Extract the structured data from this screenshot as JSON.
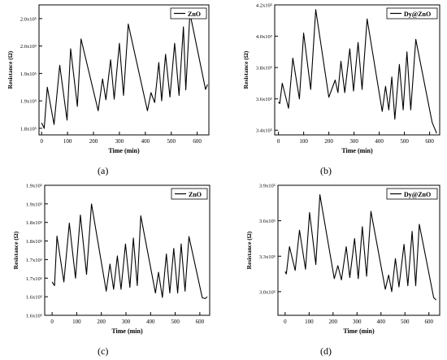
{
  "chart_data": [
    {
      "type": "line",
      "panel_label": "(a)",
      "legend": "ZnO",
      "legend_position": "top-right",
      "xlabel": "Time (min)",
      "ylabel": "Resistance (Ω)",
      "xlim": [
        -10,
        645
      ],
      "ylim": [
        1.788,
        2.025
      ],
      "x_ticks": [
        "0",
        "100",
        "200",
        "300",
        "400",
        "500",
        "600"
      ],
      "x_tick_values": [
        0,
        100,
        200,
        300,
        400,
        500,
        600
      ],
      "y_ticks": [
        "1.8x10⁵",
        "1.9x10⁵",
        "1.9x10⁵",
        "2.0x10⁵",
        "2.0x10⁵"
      ],
      "y_tick_values": [
        1.8,
        1.85,
        1.9,
        1.95,
        2.0
      ],
      "series": [
        {
          "values": [
            [
              0,
              1.81
            ],
            [
              10,
              1.8
            ],
            [
              22,
              1.875
            ],
            [
              48,
              1.807
            ],
            [
              70,
              1.915
            ],
            [
              98,
              1.815
            ],
            [
              112,
              1.945
            ],
            [
              138,
              1.84
            ],
            [
              152,
              1.963
            ],
            [
              218,
              1.832
            ],
            [
              235,
              1.89
            ],
            [
              248,
              1.852
            ],
            [
              266,
              1.925
            ],
            [
              280,
              1.853
            ],
            [
              300,
              1.955
            ],
            [
              316,
              1.86
            ],
            [
              334,
              1.99
            ],
            [
              408,
              1.832
            ],
            [
              422,
              1.865
            ],
            [
              436,
              1.847
            ],
            [
              452,
              1.92
            ],
            [
              463,
              1.85
            ],
            [
              478,
              1.935
            ],
            [
              495,
              1.857
            ],
            [
              513,
              1.955
            ],
            [
              530,
              1.86
            ],
            [
              547,
              1.985
            ],
            [
              556,
              1.87
            ],
            [
              572,
              2.01
            ],
            [
              632,
              1.871
            ],
            [
              640,
              1.88
            ]
          ]
        }
      ]
    },
    {
      "type": "line",
      "panel_label": "(b)",
      "legend": "Dy@ZnO",
      "legend_position": "top-right",
      "xlabel": "Time (min)",
      "ylabel": "Resistance (Ω)",
      "xlim": [
        -15,
        640
      ],
      "ylim": [
        3.37,
        4.2
      ],
      "x_ticks": [
        "0",
        "100",
        "200",
        "300",
        "400",
        "500",
        "600"
      ],
      "x_tick_values": [
        0,
        100,
        200,
        300,
        400,
        500,
        600
      ],
      "y_ticks": [
        "3.4x10⁵",
        "3.6x10⁵",
        "3.8x10⁵",
        "4.0x10⁵",
        "4.2x10⁵"
      ],
      "y_tick_values": [
        3.4,
        3.6,
        3.8,
        4.0,
        4.2
      ],
      "series": [
        {
          "values": [
            [
              0,
              3.58
            ],
            [
              5,
              3.57
            ],
            [
              15,
              3.7
            ],
            [
              40,
              3.54
            ],
            [
              57,
              3.86
            ],
            [
              83,
              3.6
            ],
            [
              100,
              4.02
            ],
            [
              128,
              3.66
            ],
            [
              148,
              4.17
            ],
            [
              200,
              3.61
            ],
            [
              225,
              3.72
            ],
            [
              236,
              3.64
            ],
            [
              248,
              3.84
            ],
            [
              263,
              3.64
            ],
            [
              283,
              3.92
            ],
            [
              298,
              3.65
            ],
            [
              316,
              3.96
            ],
            [
              332,
              3.66
            ],
            [
              352,
              4.11
            ],
            [
              412,
              3.52
            ],
            [
              425,
              3.68
            ],
            [
              438,
              3.53
            ],
            [
              450,
              3.74
            ],
            [
              462,
              3.47
            ],
            [
              480,
              3.82
            ],
            [
              495,
              3.53
            ],
            [
              510,
              3.9
            ],
            [
              525,
              3.53
            ],
            [
              545,
              3.98
            ],
            [
              610,
              3.45
            ],
            [
              628,
              3.38
            ]
          ]
        }
      ]
    },
    {
      "type": "line",
      "panel_label": "(c)",
      "legend": "ZnO",
      "legend_position": "top-right",
      "xlabel": "Time (min)",
      "ylabel": "Resistance (Ω)",
      "xlim": [
        -30,
        640
      ],
      "ylim": [
        1.6,
        1.95
      ],
      "x_ticks": [
        "0",
        "100",
        "200",
        "300",
        "400",
        "500",
        "600"
      ],
      "x_tick_values": [
        0,
        100,
        200,
        300,
        400,
        500,
        600
      ],
      "y_ticks": [
        "1.6x10⁵",
        "1.6x10⁵",
        "1.7x10⁵",
        "1.7x10⁵",
        "1.8x10⁵",
        "1.8x10⁵",
        "1.9x10⁵",
        "1.9x10⁵"
      ],
      "y_tick_values": [
        1.6,
        1.65,
        1.7,
        1.75,
        1.8,
        1.85,
        1.9,
        1.95
      ],
      "series": [
        {
          "values": [
            [
              0,
              1.69
            ],
            [
              10,
              1.68
            ],
            [
              20,
              1.813
            ],
            [
              48,
              1.69
            ],
            [
              70,
              1.848
            ],
            [
              95,
              1.7
            ],
            [
              115,
              1.87
            ],
            [
              140,
              1.71
            ],
            [
              160,
              1.9
            ],
            [
              220,
              1.665
            ],
            [
              235,
              1.738
            ],
            [
              250,
              1.67
            ],
            [
              265,
              1.76
            ],
            [
              280,
              1.67
            ],
            [
              298,
              1.792
            ],
            [
              316,
              1.675
            ],
            [
              330,
              1.808
            ],
            [
              346,
              1.68
            ],
            [
              360,
              1.868
            ],
            [
              420,
              1.66
            ],
            [
              432,
              1.716
            ],
            [
              448,
              1.648
            ],
            [
              464,
              1.765
            ],
            [
              478,
              1.66
            ],
            [
              494,
              1.78
            ],
            [
              510,
              1.66
            ],
            [
              524,
              1.792
            ],
            [
              540,
              1.665
            ],
            [
              556,
              1.812
            ],
            [
              610,
              1.647
            ],
            [
              622,
              1.645
            ],
            [
              630,
              1.65
            ]
          ]
        }
      ]
    },
    {
      "type": "line",
      "panel_label": "(d)",
      "legend": "Dy@ZnO",
      "legend_position": "top-right",
      "xlabel": "Time (min)",
      "ylabel": "Resistance (Ω)",
      "xlim": [
        -30,
        645
      ],
      "ylim": [
        2.8,
        3.9
      ],
      "x_ticks": [
        "0",
        "100",
        "200",
        "300",
        "400",
        "500",
        "600"
      ],
      "x_tick_values": [
        0,
        100,
        200,
        300,
        400,
        500,
        600
      ],
      "y_ticks": [
        "3.0x10⁵",
        "3.3x10⁵",
        "3.6x10⁵",
        "3.9x10⁵"
      ],
      "y_tick_values": [
        3.0,
        3.3,
        3.6,
        3.9
      ],
      "series": [
        {
          "values": [
            [
              0,
              3.17
            ],
            [
              5,
              3.15
            ],
            [
              18,
              3.38
            ],
            [
              42,
              3.18
            ],
            [
              60,
              3.52
            ],
            [
              85,
              3.19
            ],
            [
              102,
              3.67
            ],
            [
              128,
              3.23
            ],
            [
              145,
              3.82
            ],
            [
              205,
              3.11
            ],
            [
              220,
              3.22
            ],
            [
              235,
              3.1
            ],
            [
              255,
              3.38
            ],
            [
              270,
              3.12
            ],
            [
              290,
              3.45
            ],
            [
              305,
              3.11
            ],
            [
              322,
              3.55
            ],
            [
              340,
              3.13
            ],
            [
              358,
              3.68
            ],
            [
              418,
              3.02
            ],
            [
              432,
              3.14
            ],
            [
              445,
              3.0
            ],
            [
              460,
              3.28
            ],
            [
              475,
              3.04
            ],
            [
              496,
              3.4
            ],
            [
              512,
              3.05
            ],
            [
              530,
              3.51
            ],
            [
              545,
              3.05
            ],
            [
              560,
              3.57
            ],
            [
              620,
              2.95
            ],
            [
              630,
              2.93
            ]
          ]
        }
      ]
    }
  ]
}
